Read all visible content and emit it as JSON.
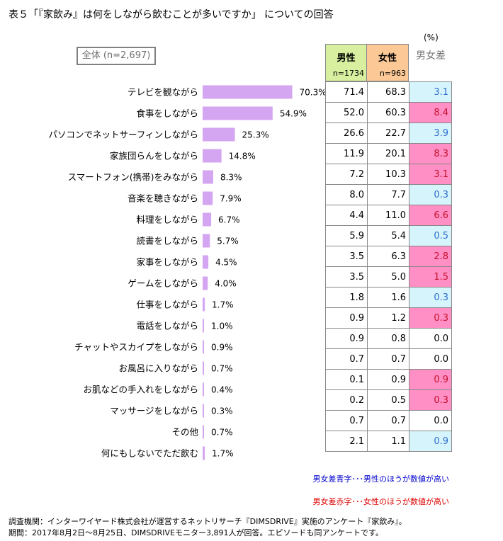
{
  "title": "表５「『家飲み』は何をしながら飲むことが多いですか」 についての回答",
  "unit": "(%)",
  "total_label": "全体 (n=2,697)",
  "headers": {
    "male_label": "男性",
    "male_n": "n=1734",
    "female_label": "女性",
    "female_n": "n=963",
    "diff_label": "男女差"
  },
  "chart_data": {
    "type": "bar",
    "orientation": "horizontal",
    "categories": [
      "テレビを観ながら",
      "食事をしながら",
      "パソコンでネットサーフィンしながら",
      "家族団らんをしながら",
      "スマートフォン(携帯)をみながら",
      "音楽を聴きながら",
      "料理をしながら",
      "読書をしながら",
      "家事をしながら",
      "ゲームをしながら",
      "仕事をしながら",
      "電話をしながら",
      "チャットやスカイプをしながら",
      "お風呂に入りながら",
      "お肌などの手入れをしながら",
      "マッサージをしながら",
      "その他",
      "何にもしないでただ飲む"
    ],
    "series": [
      {
        "values": [
          70.3,
          54.9,
          25.3,
          14.8,
          8.3,
          7.9,
          6.7,
          5.7,
          4.5,
          4.0,
          1.7,
          1.0,
          0.9,
          0.7,
          0.4,
          0.3,
          0.7,
          1.7
        ]
      }
    ],
    "value_labels": [
      "70.3%",
      "54.9%",
      "25.3%",
      "14.8%",
      "8.3%",
      "7.9%",
      "6.7%",
      "5.7%",
      "4.5%",
      "4.0%",
      "1.7%",
      "1.0%",
      "0.9%",
      "0.7%",
      "0.4%",
      "0.3%",
      "0.7%",
      "1.7%"
    ],
    "bar_color": "#d4a6f2",
    "xlim": [
      0,
      100
    ]
  },
  "table": {
    "rows": [
      {
        "male": "71.4",
        "female": "68.3",
        "diff": "3.1",
        "color": "blue"
      },
      {
        "male": "52.0",
        "female": "60.3",
        "diff": "8.4",
        "color": "pink"
      },
      {
        "male": "26.6",
        "female": "22.7",
        "diff": "3.9",
        "color": "blue"
      },
      {
        "male": "11.9",
        "female": "20.1",
        "diff": "8.3",
        "color": "pink"
      },
      {
        "male": "7.2",
        "female": "10.3",
        "diff": "3.1",
        "color": "pink"
      },
      {
        "male": "8.0",
        "female": "7.7",
        "diff": "0.3",
        "color": "blue"
      },
      {
        "male": "4.4",
        "female": "11.0",
        "diff": "6.6",
        "color": "pink"
      },
      {
        "male": "5.9",
        "female": "5.4",
        "diff": "0.5",
        "color": "blue"
      },
      {
        "male": "3.5",
        "female": "6.3",
        "diff": "2.8",
        "color": "pink"
      },
      {
        "male": "3.5",
        "female": "5.0",
        "diff": "1.5",
        "color": "pink"
      },
      {
        "male": "1.8",
        "female": "1.6",
        "diff": "0.3",
        "color": "blue"
      },
      {
        "male": "0.9",
        "female": "1.2",
        "diff": "0.3",
        "color": "pink"
      },
      {
        "male": "0.9",
        "female": "0.8",
        "diff": "0.0",
        "color": "none"
      },
      {
        "male": "0.7",
        "female": "0.7",
        "diff": "0.0",
        "color": "none"
      },
      {
        "male": "0.1",
        "female": "0.9",
        "diff": "0.9",
        "color": "pink"
      },
      {
        "male": "0.2",
        "female": "0.5",
        "diff": "0.3",
        "color": "pink"
      },
      {
        "male": "0.7",
        "female": "0.7",
        "diff": "0.0",
        "color": "none"
      },
      {
        "male": "2.1",
        "female": "1.1",
        "diff": "0.9",
        "color": "blue"
      }
    ]
  },
  "legend": {
    "blue_text": "男女差青字･･･男性のほうが数値が高い",
    "red_text": "男女差赤字･･･女性のほうが数値が高い"
  },
  "footnotes": {
    "line1": "調査機関：インターワイヤード株式会社が運営するネットリサーチ『DIMSDRIVE』実施のアンケート『家飲み』。",
    "line2": "期間：2017年8月2日～8月25日、DIMSDRIVEモニター3,891人が回答。エピソードも同アンケートです。"
  }
}
